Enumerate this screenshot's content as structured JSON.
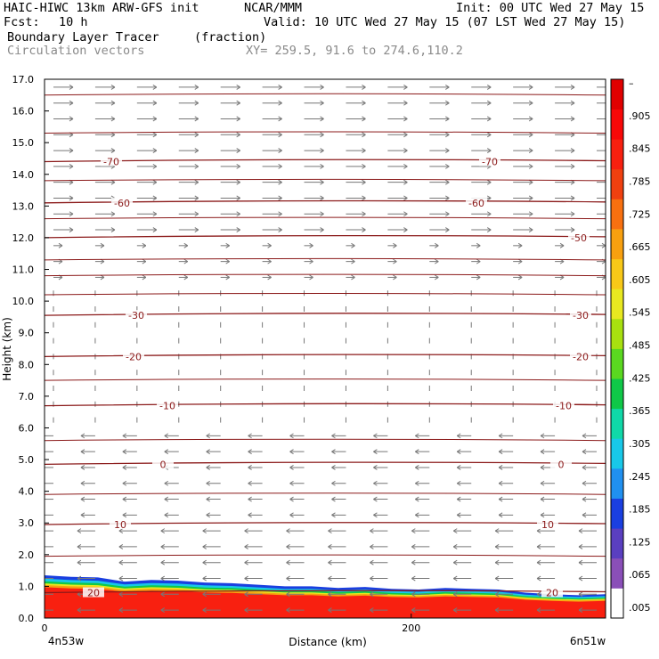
{
  "header": {
    "title_line": "HAIC-HIWC 13km ARW-GFS init",
    "org": "NCAR/MMM",
    "init": "Init: 00 UTC Wed 27 May 15",
    "fcst_label": "Fcst:",
    "fcst_value": "10 h",
    "valid": "Valid: 10 UTC Wed 27 May 15 (07 LST Wed 27 May 15)",
    "field_name": "Boundary Layer Tracer",
    "field_unit": "(fraction)",
    "vector_name": "Circulation vectors",
    "xy": "XY= 259.5, 91.6 to 274.6,110.2"
  },
  "chart_data": {
    "type": "heatmap",
    "title": "Boundary Layer Tracer (fraction)",
    "xlabel": "Distance (km)",
    "ylabel": "Height (km)",
    "xlim": [
      0,
      306
    ],
    "ylim": [
      0,
      17.0
    ],
    "x_ticks": [
      0,
      200
    ],
    "x_end_labels": [
      "4n53w",
      "6n51w"
    ],
    "y_ticks": [
      "0.0",
      "1.0",
      "2.0",
      "3.0",
      "4.0",
      "5.0",
      "6.0",
      "7.0",
      "8.0",
      "9.0",
      "10.0",
      "11.0",
      "12.0",
      "13.0",
      "14.0",
      "15.0",
      "16.0",
      "17.0"
    ],
    "colorbar": {
      "labels": [
        ".005",
        ".065",
        ".125",
        ".185",
        ".245",
        ".305",
        ".365",
        ".425",
        ".485",
        ".545",
        ".605",
        ".665",
        ".725",
        ".785",
        ".845",
        ".905",
        "–"
      ],
      "colors": [
        "#ffffff",
        "#8a4fb8",
        "#5a3fc0",
        "#1a3fe0",
        "#2090f0",
        "#18c8e8",
        "#10d8a8",
        "#10c848",
        "#5ad820",
        "#a8e010",
        "#e8e820",
        "#f8c818",
        "#f8a010",
        "#f87010",
        "#f04010",
        "#f82010",
        "#f80808",
        "#e00000"
      ]
    },
    "tracer_top_km": [
      1.35,
      1.3,
      1.28,
      1.15,
      1.2,
      1.18,
      1.12,
      1.1,
      1.05,
      1.0,
      1.0,
      0.95,
      0.98,
      0.92,
      0.9,
      0.95,
      0.92,
      0.9,
      0.8,
      0.75,
      0.72,
      0.75
    ],
    "contours": [
      {
        "label": "20",
        "km": 0.8
      },
      {
        "label": "10",
        "km": 2.95
      },
      {
        "label": "0",
        "km": 4.85
      },
      {
        "label": "-10",
        "km": 6.7
      },
      {
        "label": "-20",
        "km": 8.25
      },
      {
        "label": "-30",
        "km": 9.55
      },
      {
        "label": "-50",
        "km": 12.0
      },
      {
        "label": "-60",
        "km": 13.1
      },
      {
        "label": "-70",
        "km": 14.4
      }
    ]
  }
}
